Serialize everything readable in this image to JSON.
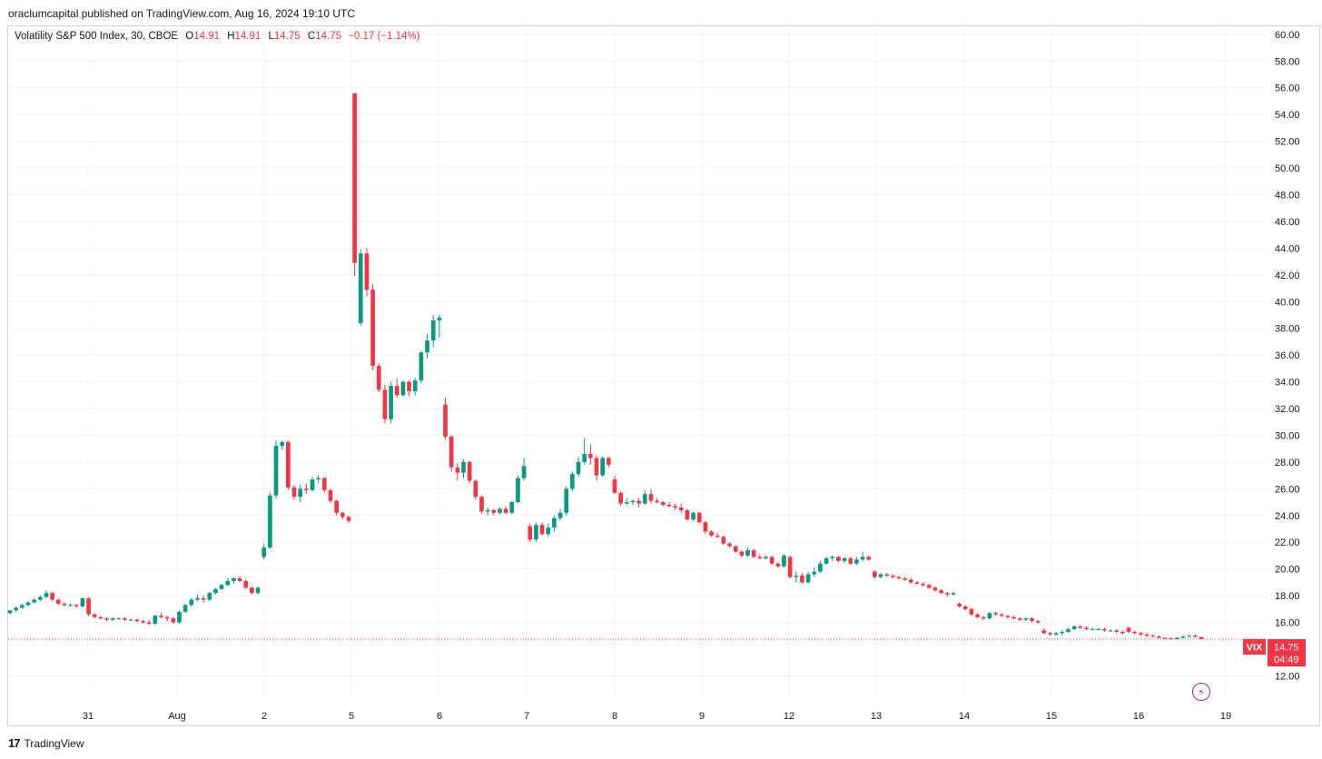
{
  "header": {
    "attribution": "oraclumcapital published on TradingView.com, Aug 16, 2024 19:10 UTC"
  },
  "legend": {
    "symbol": "Volatility S&P 500 Index, 30, CBOE",
    "o_label": "O",
    "o": "14.91",
    "h_label": "H",
    "h": "14.91",
    "l_label": "L",
    "l": "14.75",
    "c_label": "C",
    "c": "14.75",
    "change": "−0.17 (−1.14%)"
  },
  "badges": {
    "ticker": "VIX",
    "price": "14.75",
    "countdown": "04:49"
  },
  "footer": {
    "brand": "TradingView"
  },
  "colors": {
    "up": "#089981",
    "down": "#f23645",
    "grid": "#f0f3fa",
    "price_line": "#f23645",
    "accent_icon": "#9c27b0"
  },
  "icons": [
    "tradingview-logo-icon",
    "flash-icon"
  ],
  "chart_data": {
    "type": "candlestick",
    "interval": "30",
    "y_axis": {
      "ticks": [
        "12.00",
        "16.00",
        "18.00",
        "20.00",
        "22.00",
        "24.00",
        "26.00",
        "28.00",
        "30.00",
        "32.00",
        "34.00",
        "36.00",
        "38.00",
        "40.00",
        "42.00",
        "44.00",
        "46.00",
        "48.00",
        "50.00",
        "52.00",
        "54.00",
        "56.00",
        "58.00",
        "60.00"
      ],
      "range": [
        10.4,
        60.6
      ],
      "position": "right"
    },
    "x_axis": {
      "ticks": [
        "31",
        "Aug",
        "2",
        "5",
        "6",
        "7",
        "8",
        "9",
        "12",
        "13",
        "14",
        "15",
        "16",
        "19"
      ]
    },
    "grid": true,
    "last_price": 14.75,
    "candles": [
      [
        16.7,
        16.9,
        16.6,
        16.9
      ],
      [
        16.9,
        17.2,
        16.8,
        17.1
      ],
      [
        17.1,
        17.4,
        17.0,
        17.3
      ],
      [
        17.3,
        17.6,
        17.2,
        17.5
      ],
      [
        17.5,
        17.8,
        17.4,
        17.7
      ],
      [
        17.7,
        18.0,
        17.6,
        17.9
      ],
      [
        17.9,
        18.4,
        17.8,
        18.2
      ],
      [
        18.2,
        18.3,
        17.6,
        17.7
      ],
      [
        17.7,
        17.8,
        17.3,
        17.4
      ],
      [
        17.4,
        17.5,
        17.2,
        17.3
      ],
      [
        17.3,
        17.4,
        17.2,
        17.3
      ],
      [
        17.3,
        17.4,
        17.1,
        17.2
      ],
      [
        17.2,
        17.9,
        17.1,
        17.8
      ],
      [
        17.8,
        17.9,
        16.5,
        16.6
      ],
      [
        16.6,
        16.7,
        16.3,
        16.4
      ],
      [
        16.4,
        16.5,
        16.2,
        16.3
      ],
      [
        16.3,
        16.4,
        16.1,
        16.2
      ],
      [
        16.2,
        16.4,
        16.1,
        16.3
      ],
      [
        16.3,
        16.4,
        16.2,
        16.3
      ],
      [
        16.3,
        16.4,
        16.1,
        16.2
      ],
      [
        16.2,
        16.3,
        16.1,
        16.2
      ],
      [
        16.2,
        16.3,
        16.0,
        16.1
      ],
      [
        16.1,
        16.2,
        15.9,
        16.0
      ],
      [
        16.0,
        16.2,
        15.8,
        15.9
      ],
      [
        15.9,
        16.6,
        15.8,
        16.5
      ],
      [
        16.5,
        16.7,
        16.3,
        16.4
      ],
      [
        16.4,
        16.5,
        16.1,
        16.3
      ],
      [
        16.3,
        16.4,
        15.9,
        16.0
      ],
      [
        16.0,
        16.9,
        15.9,
        16.8
      ],
      [
        16.8,
        17.4,
        16.7,
        17.3
      ],
      [
        17.3,
        17.8,
        17.2,
        17.7
      ],
      [
        17.7,
        18.1,
        17.6,
        17.8
      ],
      [
        17.8,
        18.0,
        17.5,
        17.7
      ],
      [
        17.7,
        18.3,
        17.6,
        18.2
      ],
      [
        18.2,
        18.6,
        18.1,
        18.5
      ],
      [
        18.5,
        18.9,
        18.4,
        18.8
      ],
      [
        18.8,
        19.3,
        18.7,
        19.1
      ],
      [
        19.1,
        19.4,
        18.9,
        19.3
      ],
      [
        19.3,
        19.5,
        19.0,
        19.1
      ],
      [
        19.1,
        19.2,
        18.5,
        18.6
      ],
      [
        18.6,
        18.7,
        18.1,
        18.2
      ],
      [
        18.2,
        18.7,
        18.1,
        18.6
      ],
      [
        20.9,
        21.9,
        20.7,
        21.6
      ],
      [
        21.6,
        25.7,
        21.5,
        25.5
      ],
      [
        25.5,
        29.6,
        25.3,
        29.2
      ],
      [
        29.2,
        29.6,
        28.9,
        29.5
      ],
      [
        29.5,
        29.6,
        25.9,
        26.1
      ],
      [
        26.1,
        26.3,
        25.2,
        25.4
      ],
      [
        25.4,
        26.3,
        25.0,
        26.0
      ],
      [
        26.0,
        26.4,
        25.6,
        25.9
      ],
      [
        25.9,
        26.9,
        25.8,
        26.7
      ],
      [
        26.7,
        27.0,
        26.4,
        26.8
      ],
      [
        26.8,
        26.9,
        25.7,
        25.9
      ],
      [
        25.9,
        26.0,
        24.9,
        25.1
      ],
      [
        25.1,
        25.2,
        24.0,
        24.2
      ],
      [
        24.2,
        24.3,
        23.7,
        23.9
      ],
      [
        23.9,
        24.0,
        23.4,
        23.6
      ],
      [
        55.6,
        55.6,
        41.9,
        42.9
      ],
      [
        38.4,
        43.9,
        38.2,
        43.6
      ],
      [
        43.6,
        44.0,
        40.4,
        40.9
      ],
      [
        40.9,
        41.3,
        34.9,
        35.2
      ],
      [
        35.2,
        35.4,
        33.2,
        33.4
      ],
      [
        33.4,
        33.8,
        30.9,
        31.2
      ],
      [
        31.2,
        34.0,
        30.9,
        33.7
      ],
      [
        33.7,
        34.2,
        32.8,
        33.0
      ],
      [
        33.0,
        34.1,
        32.9,
        34.0
      ],
      [
        34.0,
        34.1,
        32.9,
        33.3
      ],
      [
        33.3,
        34.3,
        33.0,
        34.1
      ],
      [
        34.1,
        36.3,
        33.9,
        36.2
      ],
      [
        36.2,
        37.6,
        35.8,
        37.1
      ],
      [
        37.1,
        39.0,
        36.6,
        38.6
      ],
      [
        38.6,
        39.0,
        37.3,
        38.8
      ],
      [
        32.3,
        32.8,
        29.7,
        29.9
      ],
      [
        29.9,
        30.0,
        27.3,
        27.6
      ],
      [
        27.6,
        27.9,
        26.6,
        27.2
      ],
      [
        27.2,
        28.2,
        26.8,
        28.0
      ],
      [
        28.0,
        28.1,
        26.4,
        26.6
      ],
      [
        26.6,
        26.7,
        25.2,
        25.4
      ],
      [
        25.4,
        25.5,
        24.1,
        24.3
      ],
      [
        24.3,
        24.6,
        24.0,
        24.4
      ],
      [
        24.4,
        24.5,
        24.0,
        24.2
      ],
      [
        24.2,
        24.6,
        24.1,
        24.5
      ],
      [
        24.5,
        24.7,
        24.1,
        24.2
      ],
      [
        24.2,
        25.1,
        24.1,
        25.0
      ],
      [
        25.0,
        27.0,
        24.9,
        26.8
      ],
      [
        26.8,
        28.3,
        26.6,
        27.7
      ],
      [
        23.2,
        23.4,
        22.0,
        22.2
      ],
      [
        22.2,
        23.5,
        22.0,
        23.3
      ],
      [
        23.3,
        23.5,
        22.5,
        22.6
      ],
      [
        22.6,
        23.4,
        22.4,
        23.1
      ],
      [
        23.1,
        24.0,
        22.8,
        23.8
      ],
      [
        23.8,
        24.5,
        23.6,
        24.2
      ],
      [
        24.2,
        26.2,
        24.0,
        26.0
      ],
      [
        26.0,
        27.3,
        25.8,
        27.1
      ],
      [
        27.1,
        28.4,
        26.9,
        28.0
      ],
      [
        28.0,
        29.8,
        27.8,
        28.6
      ],
      [
        28.6,
        29.3,
        27.8,
        28.3
      ],
      [
        28.3,
        28.5,
        26.6,
        27.0
      ],
      [
        27.0,
        28.4,
        26.9,
        28.3
      ],
      [
        28.3,
        28.4,
        27.6,
        27.8
      ],
      [
        26.7,
        27.0,
        25.6,
        25.7
      ],
      [
        25.7,
        25.8,
        24.7,
        24.9
      ],
      [
        24.9,
        25.3,
        24.8,
        25.0
      ],
      [
        25.0,
        25.2,
        24.8,
        25.1
      ],
      [
        25.1,
        25.3,
        24.6,
        24.9
      ],
      [
        24.9,
        25.9,
        24.8,
        25.6
      ],
      [
        25.6,
        26.0,
        24.9,
        25.1
      ],
      [
        25.1,
        25.3,
        24.9,
        25.0
      ],
      [
        25.0,
        25.1,
        24.7,
        24.8
      ],
      [
        24.8,
        25.0,
        24.6,
        24.7
      ],
      [
        24.7,
        24.9,
        24.4,
        24.6
      ],
      [
        24.6,
        24.9,
        24.2,
        24.4
      ],
      [
        24.4,
        24.5,
        23.6,
        23.7
      ],
      [
        23.7,
        24.3,
        23.6,
        24.2
      ],
      [
        24.2,
        24.3,
        23.4,
        23.5
      ],
      [
        23.5,
        23.6,
        22.6,
        22.8
      ],
      [
        22.8,
        22.9,
        22.4,
        22.5
      ],
      [
        22.5,
        22.7,
        22.3,
        22.4
      ],
      [
        22.4,
        22.5,
        21.8,
        21.9
      ],
      [
        21.9,
        22.0,
        21.6,
        21.7
      ],
      [
        21.7,
        21.8,
        21.2,
        21.3
      ],
      [
        21.3,
        21.4,
        20.9,
        21.0
      ],
      [
        21.0,
        21.6,
        20.9,
        21.4
      ],
      [
        21.4,
        21.5,
        20.8,
        20.9
      ],
      [
        20.9,
        21.1,
        20.7,
        20.8
      ],
      [
        20.8,
        21.0,
        20.7,
        20.9
      ],
      [
        20.9,
        21.0,
        20.3,
        20.4
      ],
      [
        20.4,
        20.5,
        20.1,
        20.2
      ],
      [
        20.2,
        21.1,
        20.1,
        21.0
      ],
      [
        20.9,
        21.0,
        19.3,
        19.4
      ],
      [
        19.4,
        19.8,
        19.0,
        19.5
      ],
      [
        19.5,
        19.7,
        18.9,
        19.0
      ],
      [
        19.0,
        19.8,
        18.9,
        19.6
      ],
      [
        19.6,
        20.1,
        19.4,
        19.8
      ],
      [
        19.8,
        20.6,
        19.7,
        20.4
      ],
      [
        20.4,
        20.9,
        20.3,
        20.8
      ],
      [
        20.8,
        21.0,
        20.6,
        20.9
      ],
      [
        20.9,
        21.0,
        20.5,
        20.6
      ],
      [
        20.6,
        20.9,
        20.4,
        20.8
      ],
      [
        20.8,
        20.9,
        20.3,
        20.4
      ],
      [
        20.4,
        20.9,
        20.3,
        20.7
      ],
      [
        20.7,
        21.3,
        20.6,
        20.9
      ],
      [
        20.9,
        21.0,
        20.6,
        20.7
      ],
      [
        19.8,
        19.9,
        19.3,
        19.4
      ],
      [
        19.4,
        19.7,
        19.3,
        19.6
      ],
      [
        19.6,
        19.7,
        19.4,
        19.5
      ],
      [
        19.5,
        19.6,
        19.3,
        19.4
      ],
      [
        19.4,
        19.5,
        19.2,
        19.3
      ],
      [
        19.3,
        19.4,
        19.1,
        19.2
      ],
      [
        19.2,
        19.3,
        18.9,
        19.0
      ],
      [
        19.0,
        19.1,
        18.8,
        18.9
      ],
      [
        18.9,
        19.0,
        18.7,
        18.8
      ],
      [
        18.8,
        18.9,
        18.5,
        18.6
      ],
      [
        18.6,
        18.7,
        18.3,
        18.4
      ],
      [
        18.4,
        18.5,
        18.1,
        18.2
      ],
      [
        18.2,
        18.3,
        17.9,
        18.1
      ],
      [
        18.1,
        18.3,
        18.0,
        18.2
      ],
      [
        17.4,
        17.5,
        17.1,
        17.2
      ],
      [
        17.2,
        17.3,
        16.9,
        17.0
      ],
      [
        17.0,
        17.1,
        16.5,
        16.6
      ],
      [
        16.6,
        16.7,
        16.3,
        16.4
      ],
      [
        16.4,
        16.5,
        16.2,
        16.3
      ],
      [
        16.3,
        16.8,
        16.2,
        16.7
      ],
      [
        16.7,
        16.8,
        16.5,
        16.6
      ],
      [
        16.6,
        16.7,
        16.4,
        16.5
      ],
      [
        16.5,
        16.6,
        16.3,
        16.4
      ],
      [
        16.4,
        16.5,
        16.2,
        16.3
      ],
      [
        16.3,
        16.4,
        16.1,
        16.2
      ],
      [
        16.2,
        16.4,
        16.1,
        16.3
      ],
      [
        16.3,
        16.4,
        16.0,
        16.1
      ],
      [
        16.1,
        16.2,
        15.9,
        16.0
      ],
      [
        15.4,
        15.6,
        15.1,
        15.2
      ],
      [
        15.2,
        15.3,
        15.0,
        15.1
      ],
      [
        15.1,
        15.3,
        15.0,
        15.2
      ],
      [
        15.2,
        15.4,
        15.0,
        15.3
      ],
      [
        15.3,
        15.6,
        15.2,
        15.5
      ],
      [
        15.5,
        15.8,
        15.4,
        15.7
      ],
      [
        15.7,
        15.8,
        15.5,
        15.6
      ],
      [
        15.6,
        15.7,
        15.4,
        15.5
      ],
      [
        15.5,
        15.6,
        15.4,
        15.5
      ],
      [
        15.5,
        15.6,
        15.4,
        15.5
      ],
      [
        15.5,
        15.6,
        15.3,
        15.4
      ],
      [
        15.4,
        15.5,
        15.3,
        15.4
      ],
      [
        15.4,
        15.5,
        15.2,
        15.3
      ],
      [
        15.3,
        15.4,
        15.1,
        15.2
      ],
      [
        15.6,
        15.7,
        15.2,
        15.3
      ],
      [
        15.3,
        15.4,
        15.1,
        15.2
      ],
      [
        15.2,
        15.3,
        15.0,
        15.1
      ],
      [
        15.1,
        15.2,
        14.9,
        15.0
      ],
      [
        15.0,
        15.1,
        14.9,
        14.95
      ],
      [
        14.95,
        15.0,
        14.8,
        14.85
      ],
      [
        14.85,
        14.9,
        14.75,
        14.8
      ],
      [
        14.8,
        14.9,
        14.7,
        14.75
      ],
      [
        14.75,
        14.9,
        14.7,
        14.85
      ],
      [
        14.85,
        15.0,
        14.8,
        14.95
      ],
      [
        14.95,
        15.1,
        14.9,
        15.0
      ],
      [
        15.0,
        15.1,
        14.85,
        14.91
      ],
      [
        14.91,
        14.91,
        14.75,
        14.75
      ]
    ]
  }
}
